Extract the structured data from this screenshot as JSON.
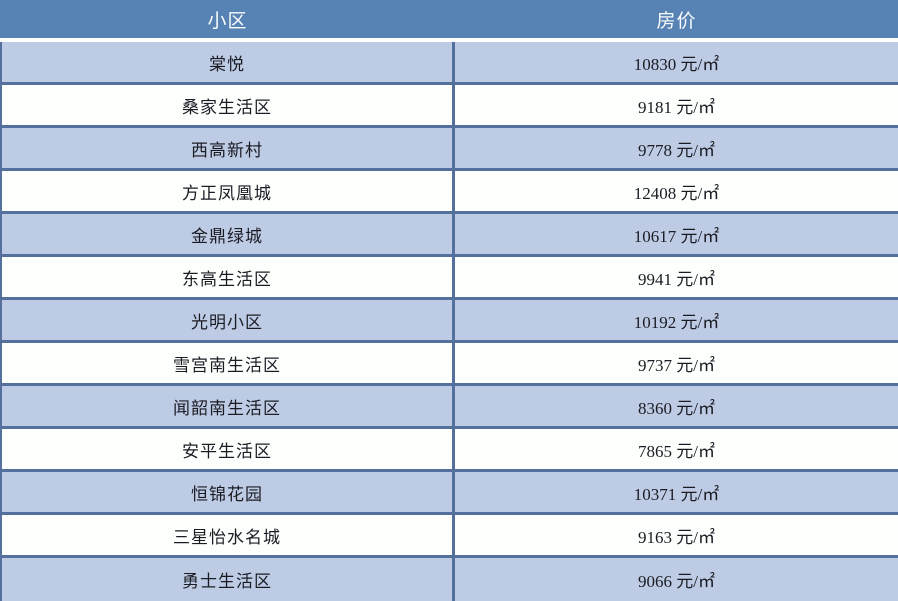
{
  "table": {
    "columns": [
      {
        "label": "小区"
      },
      {
        "label": "房价"
      }
    ],
    "rows": [
      {
        "name": "棠悦",
        "price": "10830 元/㎡"
      },
      {
        "name": "桑家生活区",
        "price": "9181 元/㎡"
      },
      {
        "name": "西高新村",
        "price": "9778 元/㎡"
      },
      {
        "name": "方正凤凰城",
        "price": "12408 元/㎡"
      },
      {
        "name": "金鼎绿城",
        "price": "10617 元/㎡"
      },
      {
        "name": "东高生活区",
        "price": "9941 元/㎡"
      },
      {
        "name": "光明小区",
        "price": "10192 元/㎡"
      },
      {
        "name": "雪宫南生活区",
        "price": "9737 元/㎡"
      },
      {
        "name": "闻韶南生活区",
        "price": "8360 元/㎡"
      },
      {
        "name": "安平生活区",
        "price": "7865 元/㎡"
      },
      {
        "name": "恒锦花园",
        "price": "10371 元/㎡"
      },
      {
        "name": "三星怡水名城",
        "price": "9163 元/㎡"
      },
      {
        "name": "勇士生活区",
        "price": "9066 元/㎡"
      }
    ]
  },
  "colors": {
    "header_bg": "#5683b3",
    "header_text": "#f9fbfd",
    "shade_row_bg": "#bdcce4",
    "plain_row_bg": "#fdfffd",
    "rule": "#54719e",
    "body_text": "#1b1b24"
  },
  "chart_data": {
    "type": "table",
    "title": "",
    "columns": [
      "小区",
      "房价"
    ],
    "unit": "元/㎡",
    "categories": [
      "棠悦",
      "桑家生活区",
      "西高新村",
      "方正凤凰城",
      "金鼎绿城",
      "东高生活区",
      "光明小区",
      "雪宫南生活区",
      "闻韶南生活区",
      "安平生活区",
      "恒锦花园",
      "三星怡水名城",
      "勇士生活区"
    ],
    "values": [
      10830,
      9181,
      9778,
      12408,
      10617,
      9941,
      10192,
      9737,
      8360,
      7865,
      10371,
      9163,
      9066
    ],
    "rows": [
      [
        "棠悦",
        "10830 元/㎡"
      ],
      [
        "桑家生活区",
        "9181 元/㎡"
      ],
      [
        "西高新村",
        "9778 元/㎡"
      ],
      [
        "方正凤凰城",
        "12408 元/㎡"
      ],
      [
        "金鼎绿城",
        "10617 元/㎡"
      ],
      [
        "东高生活区",
        "9941 元/㎡"
      ],
      [
        "光明小区",
        "10192 元/㎡"
      ],
      [
        "雪宫南生活区",
        "9737 元/㎡"
      ],
      [
        "闻韶南生活区",
        "8360 元/㎡"
      ],
      [
        "安平生活区",
        "7865 元/㎡"
      ],
      [
        "恒锦花园",
        "10371 元/㎡"
      ],
      [
        "三星怡水名城",
        "9163 元/㎡"
      ],
      [
        "勇士生活区",
        "9066 元/㎡"
      ]
    ],
    "layout": {
      "striped": true,
      "header_position": "top",
      "grid": true
    }
  }
}
